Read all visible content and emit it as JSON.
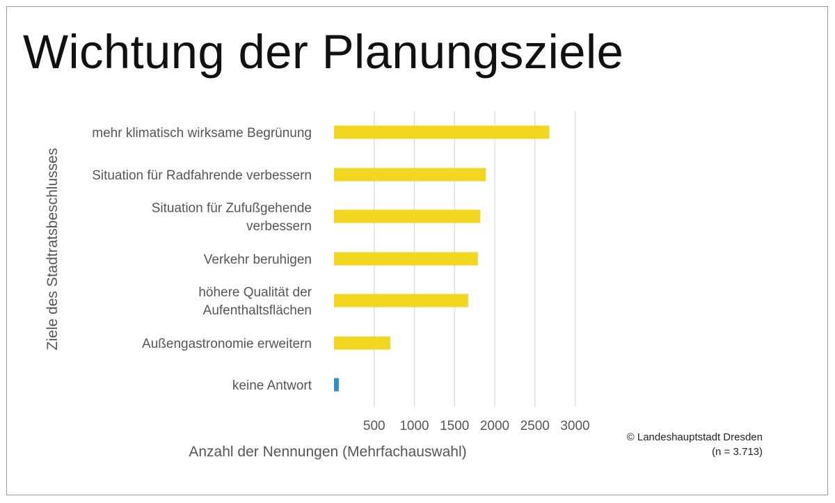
{
  "title": "Wichtung der Planungsziele",
  "credit": {
    "source": "© Landeshauptstadt Dresden",
    "sample": "(n = 3.713)"
  },
  "colors": {
    "main": "#f2d61f",
    "no_answer": "#2e8fd0",
    "grid": "#d9d9d9",
    "text": "#555555"
  },
  "chart_data": {
    "type": "bar",
    "orientation": "horizontal",
    "title": "Wichtung der Planungsziele",
    "xlabel": "Anzahl der Nennungen (Mehrfachauswahl)",
    "ylabel": "Ziele des Stadtratsbeschlusses",
    "categories": [
      [
        "mehr klimatisch wirksame Begrünung"
      ],
      [
        "Situation für Radfahrende verbessern"
      ],
      [
        "Situation für Zufußgehende",
        "verbessern"
      ],
      [
        "Verkehr beruhigen"
      ],
      [
        "höhere Qualität der",
        "Aufenthaltsflächen"
      ],
      [
        "Außengastronomie erweitern"
      ],
      [
        "keine Antwort"
      ]
    ],
    "values": [
      2680,
      1890,
      1820,
      1790,
      1670,
      700,
      60
    ],
    "xlim": [
      0,
      3000
    ],
    "xticks": [
      500,
      1000,
      1500,
      2000,
      2500,
      3000
    ],
    "grid": true,
    "legend": "none"
  }
}
